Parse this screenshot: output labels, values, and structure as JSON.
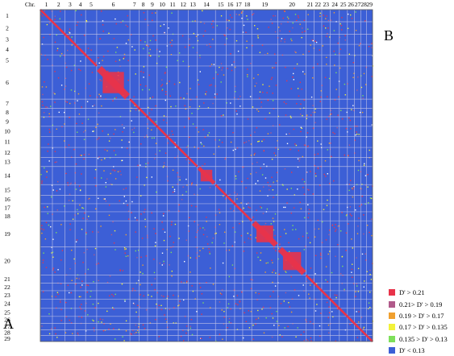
{
  "figure": {
    "chr_header": "Chr.",
    "panel_a": "A",
    "panel_b": "B"
  },
  "chromosomes": [
    "1",
    "2",
    "3",
    "4",
    "5",
    "6",
    "7",
    "8",
    "9",
    "10",
    "11",
    "12",
    "13",
    "14",
    "15",
    "16",
    "17",
    "18",
    "19",
    "20",
    "21",
    "22",
    "23",
    "24",
    "25",
    "26",
    "27",
    "28",
    "29"
  ],
  "chromosome_relative_sizes": [
    1.2,
    1.25,
    1.0,
    1.05,
    1.1,
    3.3,
    0.9,
    0.85,
    0.95,
    1.0,
    1.1,
    1.0,
    0.9,
    1.8,
    1.05,
    0.85,
    0.8,
    0.9,
    2.6,
    2.8,
    0.8,
    0.75,
    0.85,
    0.9,
    0.8,
    0.7,
    0.65,
    0.55,
    0.6
  ],
  "ld_blocks": [
    {
      "chromosome": "6",
      "strength": "high"
    },
    {
      "chromosome": "14",
      "strength": "high"
    },
    {
      "chromosome": "19",
      "strength": "high"
    },
    {
      "chromosome": "20",
      "strength": "high"
    }
  ],
  "legend": {
    "items": [
      {
        "label": "D' > 0.21",
        "color": "#e8334a"
      },
      {
        "label": "0.21> D' > 0.19",
        "color": "#b05a8a"
      },
      {
        "label": "0.19 > D' > 0.17",
        "color": "#f0a030"
      },
      {
        "label": "0.17 > D' > 0.135",
        "color": "#f2f23a"
      },
      {
        "label": "0.135 > D' > 0.13",
        "color": "#7ee05a"
      },
      {
        "label": "D' < 0.13",
        "color": "#3c5fd6"
      }
    ]
  },
  "colors": {
    "background_matrix": "#3c5fd6",
    "grid_line": "#c8c8e8",
    "high_ld": "#e8334a"
  }
}
